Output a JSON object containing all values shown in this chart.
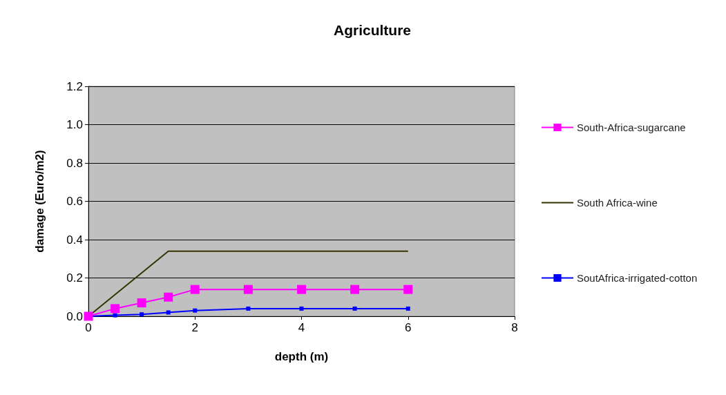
{
  "chart_data": {
    "type": "line",
    "title": "Agriculture",
    "xlabel": "depth (m)",
    "ylabel": "damage (Euro/m2)",
    "xlim": [
      0,
      8
    ],
    "xticks": [
      0,
      2,
      4,
      6,
      8
    ],
    "ylim": [
      0,
      1.2
    ],
    "yticks": [
      {
        "value": 0,
        "label": "0.0"
      },
      {
        "value": 0.2,
        "label": "0.2"
      },
      {
        "value": 0.4,
        "label": "0.4"
      },
      {
        "value": 0.6,
        "label": "0.6"
      },
      {
        "value": 0.8,
        "label": "0.8"
      },
      {
        "value": 1,
        "label": "1.0"
      },
      {
        "value": 1.2,
        "label": "1.2"
      }
    ],
    "grid": "y",
    "legend": "right",
    "series": [
      {
        "name": "South-Africa-sugarcane",
        "color": "#ff00ff",
        "marker": "square",
        "x": [
          0,
          0.5,
          1,
          1.5,
          2,
          3,
          4,
          5,
          6
        ],
        "values": [
          0,
          0.04,
          0.07,
          0.1,
          0.14,
          0.14,
          0.14,
          0.14,
          0.14
        ]
      },
      {
        "name": "South Africa-wine",
        "color": "#333300",
        "marker": "none",
        "x": [
          0,
          1.5,
          6
        ],
        "values": [
          0,
          0.34,
          0.34
        ]
      },
      {
        "name": "SoutAfrica-irrigated-cotton",
        "color": "#0000ff",
        "marker": "square",
        "x": [
          0,
          0.5,
          1,
          1.5,
          2,
          3,
          4,
          5,
          6
        ],
        "values": [
          0,
          0.005,
          0.01,
          0.02,
          0.03,
          0.04,
          0.04,
          0.04,
          0.04
        ]
      }
    ]
  }
}
